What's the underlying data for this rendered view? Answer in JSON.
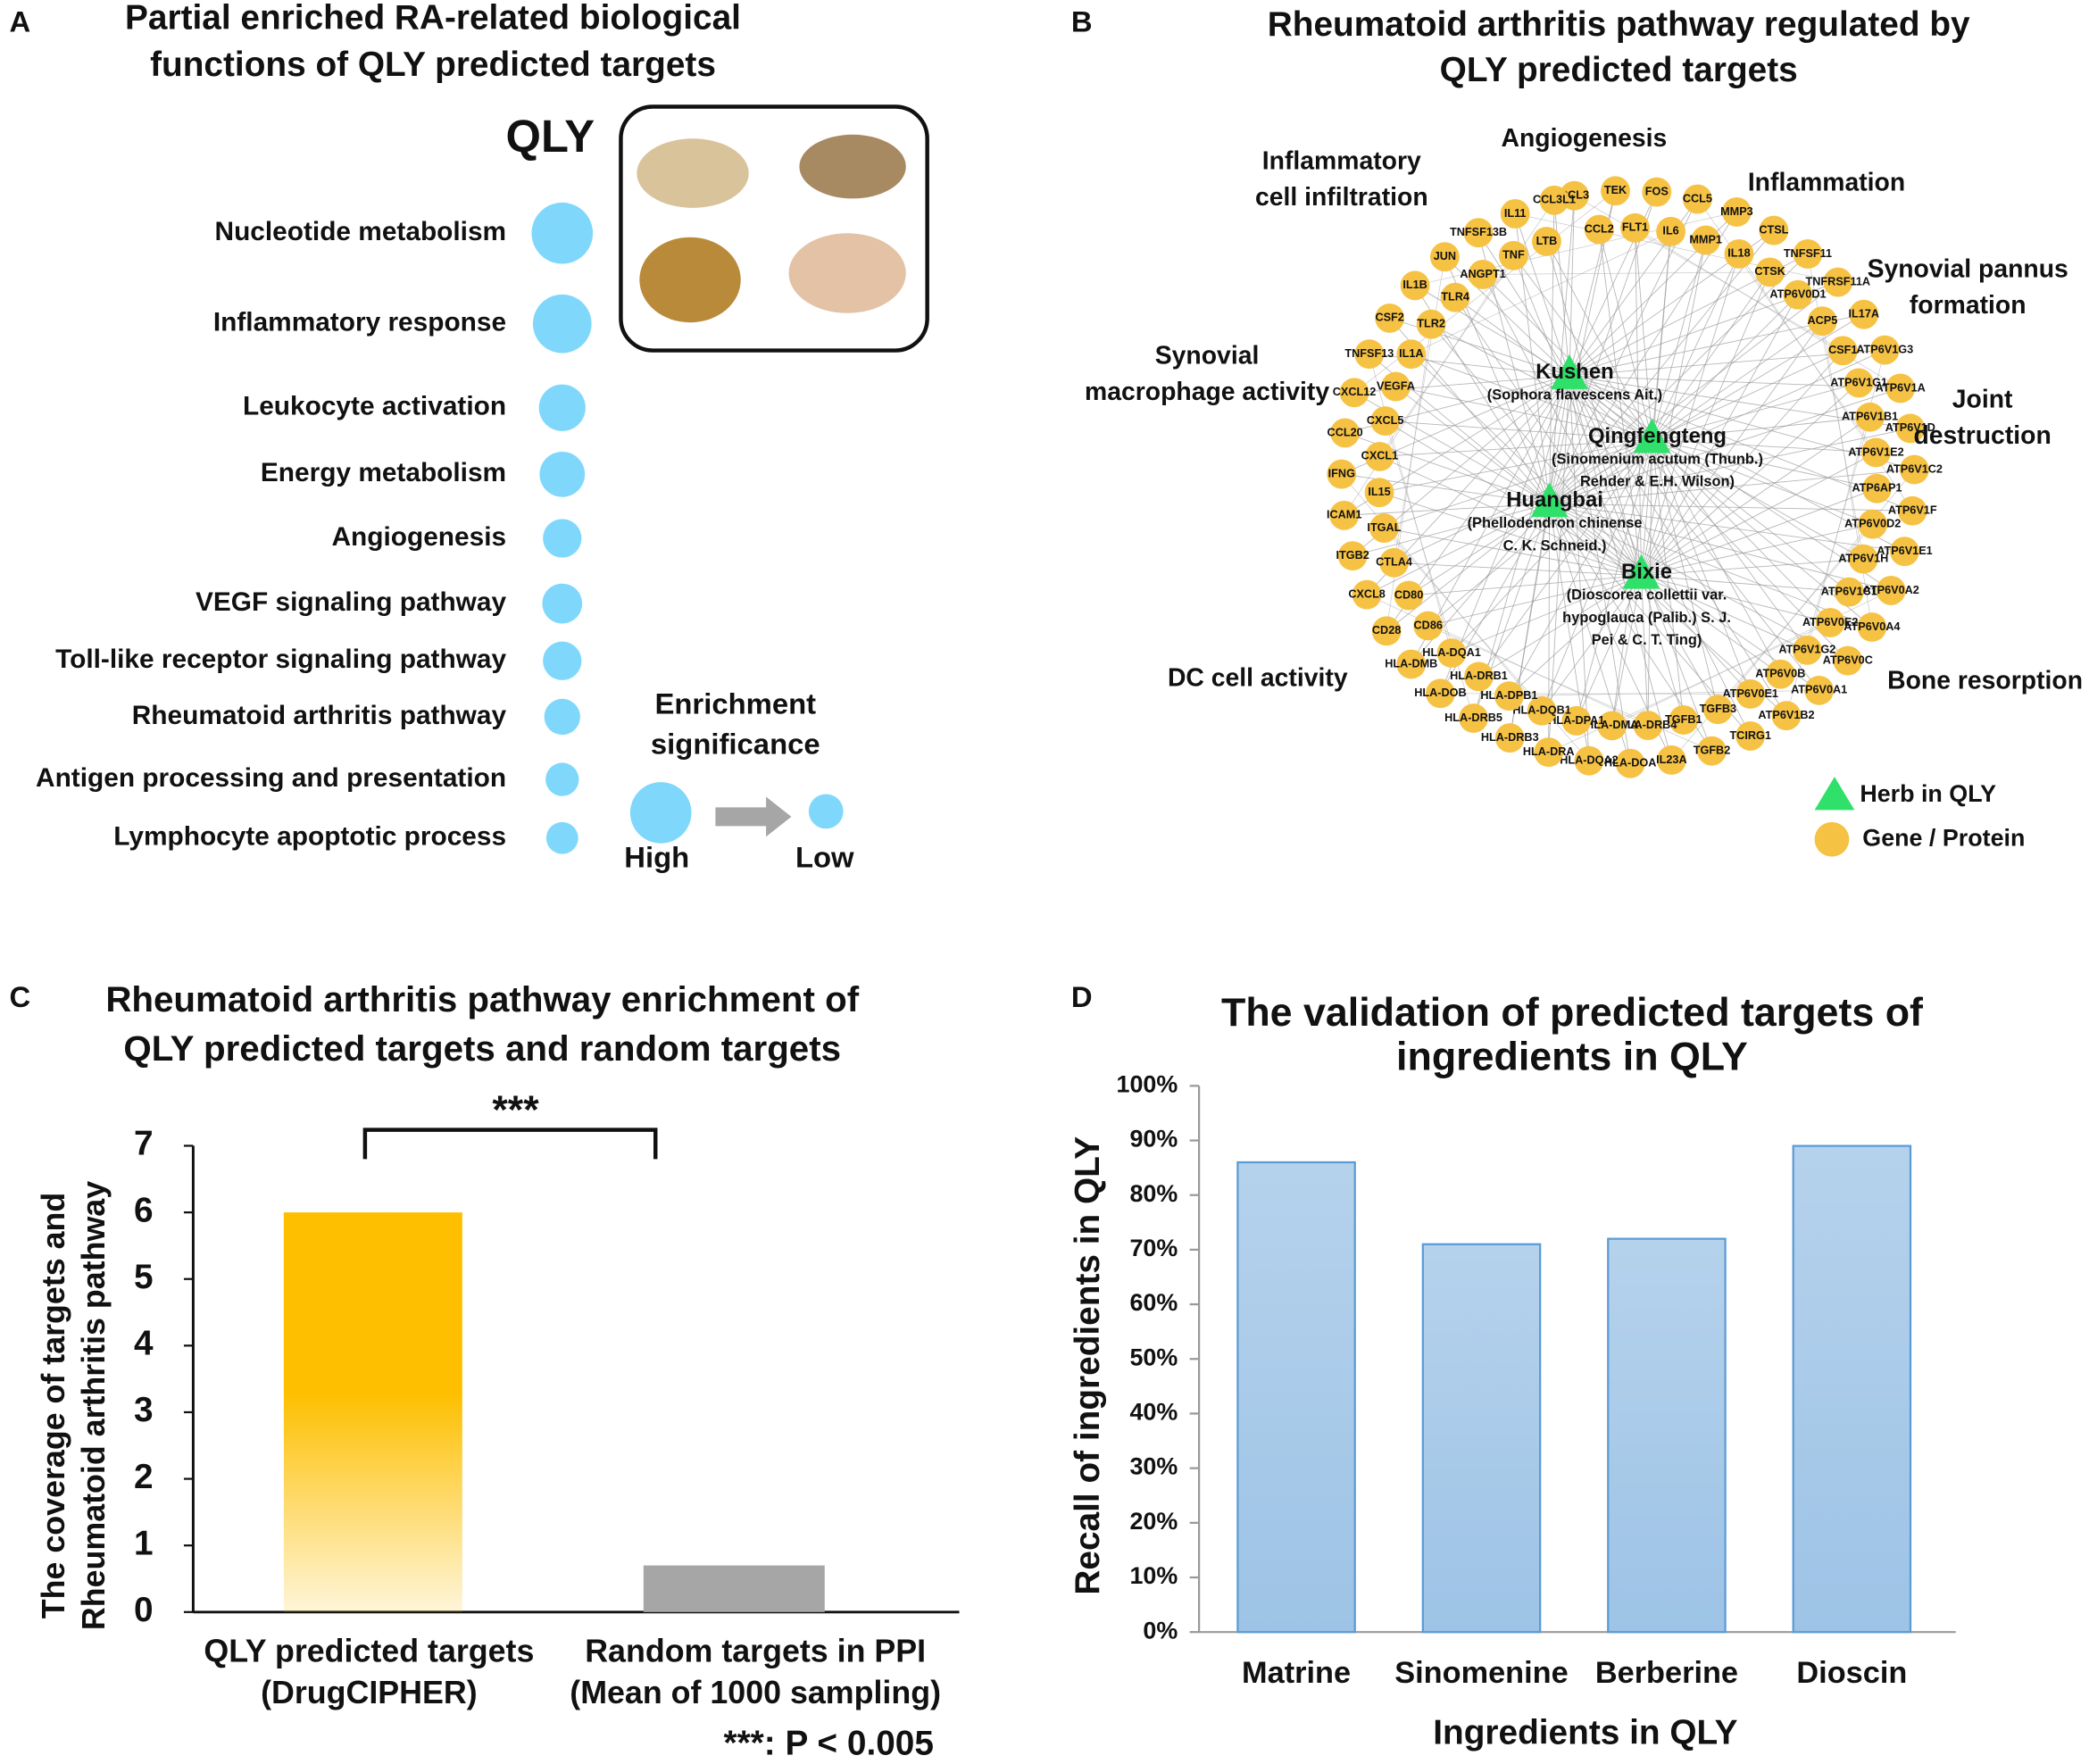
{
  "chart_data": [
    {
      "panel": "A",
      "type": "bubble",
      "title": [
        "Partial enriched RA-related biological",
        "functions of QLY predicted targets"
      ],
      "herb_label": "QLY",
      "categories": [
        "Nucleotide metabolism",
        "Inflammatory response",
        "Leukocyte activation",
        "Energy metabolism",
        "Angiogenesis",
        "VEGF signaling pathway",
        "Toll-like receptor signaling pathway",
        "Rheumatoid arthritis pathway",
        "Antigen processing and presentation",
        "Lymphocyte apoptotic process"
      ],
      "values": [
        46,
        44,
        35,
        34,
        29,
        30,
        29,
        27,
        25,
        24
      ],
      "color": "#7fd8fb",
      "legend_title": [
        "Enrichment",
        "significance"
      ],
      "legend_high": "High",
      "legend_low": "Low"
    },
    {
      "panel": "B",
      "type": "network",
      "title": [
        "Rheumatoid arthritis pathway regulated by",
        "QLY predicted targets"
      ],
      "groups": [
        [
          "Angiogenesis"
        ],
        [
          "Inflammatory",
          "cell infiltration"
        ],
        [
          "Inflammation"
        ],
        [
          "Synovial pannus",
          "formation"
        ],
        [
          "Synovial",
          "macrophage activity"
        ],
        [
          "Joint",
          "destruction"
        ],
        [
          "DC cell activity"
        ],
        [
          "Bone resorption"
        ]
      ],
      "herbs": [
        {
          "name": "Kushen",
          "latin": [
            "(Sophora flavescens Ait.)"
          ]
        },
        {
          "name": "Qingfengteng",
          "latin": [
            "(Sinomenium acutum (Thunb.)",
            "Rehder & E.H. Wilson)"
          ]
        },
        {
          "name": "Huangbai",
          "latin": [
            "(Phellodendron chinense",
            "C. K. Schneid.)"
          ]
        },
        {
          "name": "Bixie",
          "latin": [
            "(Dioscorea collettii var.",
            "hypoglauca (Palib.) S. J.",
            "Pei & C. T. Ting)"
          ]
        }
      ],
      "genes": [
        "CCL3",
        "CCL2",
        "TEK",
        "FLT1",
        "FOS",
        "IL6",
        "CCL5",
        "MMP1",
        "MMP3",
        "IL18",
        "CTSL",
        "CTSK",
        "TNFSF11",
        "ATP6V0D1",
        "TNFRSF11A",
        "ACP5",
        "IL17A",
        "CSF1",
        "ATP6V1G3",
        "ATP6V1G1",
        "ATP6V1A",
        "ATP6V1B1",
        "ATP6V1D",
        "ATP6V1E2",
        "ATP6V1C2",
        "ATP6AP1",
        "ATP6V1F",
        "ATP6V0D2",
        "ATP6V1E1",
        "ATP6V1H",
        "ATP6V0A2",
        "ATP6V1C1",
        "ATP6V0A4",
        "ATP6V0E2",
        "ATP6V0C",
        "ATP6V1G2",
        "ATP6V0A1",
        "ATP6V0B",
        "ATP6V1B2",
        "ATP6V0E1",
        "TCIRG1",
        "TGFB3",
        "TGFB2",
        "TGFB1",
        "IL23A",
        "HLA-DRB4",
        "HLA-DOA",
        "HLA-DMA",
        "HLA-DQA2",
        "HLA-DPA1",
        "HLA-DRA",
        "HLA-DQB1",
        "HLA-DRB3",
        "HLA-DPB1",
        "HLA-DRB5",
        "HLA-DRB1",
        "HLA-DOB",
        "HLA-DQA1",
        "HLA-DMB",
        "CD86",
        "CD28",
        "CD80",
        "CXCL8",
        "CTLA4",
        "ITGB2",
        "ITGAL",
        "ICAM1",
        "IL15",
        "IFNG",
        "CXCL1",
        "CCL20",
        "CXCL5",
        "CXCL12",
        "VEGFA",
        "TNFSF13",
        "IL1A",
        "CSF2",
        "TLR2",
        "IL1B",
        "TLR4",
        "JUN",
        "ANGPT1",
        "TNFSF13B",
        "TNF",
        "IL11",
        "LTB",
        "CCL3L1"
      ],
      "herb_color": "#2fe06a",
      "gene_color": "#f6c244",
      "legend": [
        "Herb in QLY",
        "Gene / Protein"
      ]
    },
    {
      "panel": "C",
      "type": "bar",
      "title": [
        "Rheumatoid arthritis pathway enrichment of",
        "QLY predicted targets and random targets"
      ],
      "categories": [
        "QLY predicted targets",
        "Random targets in PPI"
      ],
      "category_notes": [
        "(DrugCIPHER)",
        "(Mean of 1000 sampling)"
      ],
      "values": [
        6,
        0.7
      ],
      "colors": [
        "#fdbf00",
        "#a6a6a6"
      ],
      "ylim": [
        0,
        7
      ],
      "yticks": [
        0,
        1,
        2,
        3,
        4,
        5,
        6,
        7
      ],
      "ylabel": [
        "The coverage of targets and",
        "Rheumatoid arthritis pathway"
      ],
      "annotation": "***",
      "footnote": "***: P < 0.005"
    },
    {
      "panel": "D",
      "type": "bar",
      "title": [
        "The validation of predicted targets of",
        "ingredients in QLY"
      ],
      "categories": [
        "Matrine",
        "Sinomenine",
        "Berberine",
        "Dioscin"
      ],
      "values": [
        86,
        71,
        72,
        89
      ],
      "color": "#9dc3e6",
      "ylim": [
        0,
        100
      ],
      "yticks": [
        {
          "value": 0,
          "label": "0%"
        },
        {
          "value": 10,
          "label": "10%"
        },
        {
          "value": 20,
          "label": "20%"
        },
        {
          "value": 30,
          "label": "30%"
        },
        {
          "value": 40,
          "label": "40%"
        },
        {
          "value": 50,
          "label": "50%"
        },
        {
          "value": 60,
          "label": "60%"
        },
        {
          "value": 70,
          "label": "70%"
        },
        {
          "value": 80,
          "label": "80%"
        },
        {
          "value": 90,
          "label": "90%"
        },
        {
          "value": 100,
          "label": "100%"
        }
      ],
      "xlabel": "Ingredients in QLY",
      "ylabel": "Recall of ingredients in QLY"
    }
  ]
}
